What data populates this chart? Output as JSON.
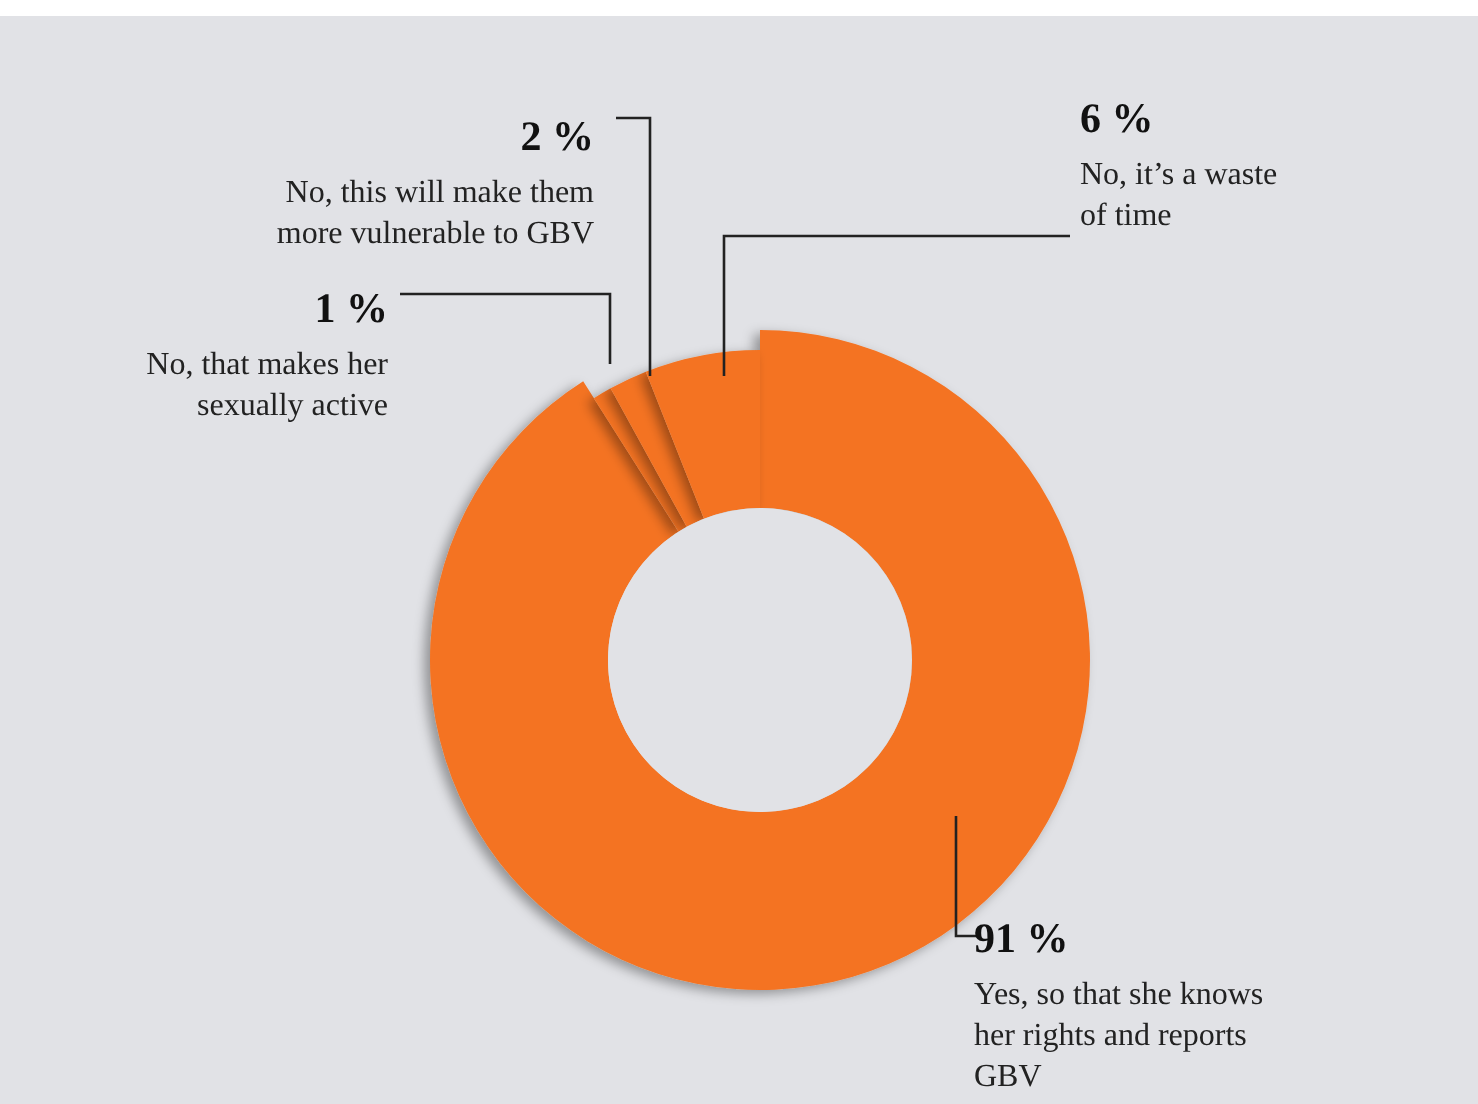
{
  "chart_data": {
    "type": "donut",
    "categories": [
      "Yes, so that she knows her rights and reports GBV",
      "No, that makes her sexually active",
      "No, this will make them more vulnerable to GBV",
      "No, it’s a waste of time"
    ],
    "values": [
      91,
      1,
      2,
      6
    ],
    "value_labels": [
      "91 %",
      "1 %",
      "2 %",
      "6 %"
    ],
    "colors": [
      "#f47321",
      "#f47321",
      "#f47321",
      "#f47321"
    ]
  }
}
